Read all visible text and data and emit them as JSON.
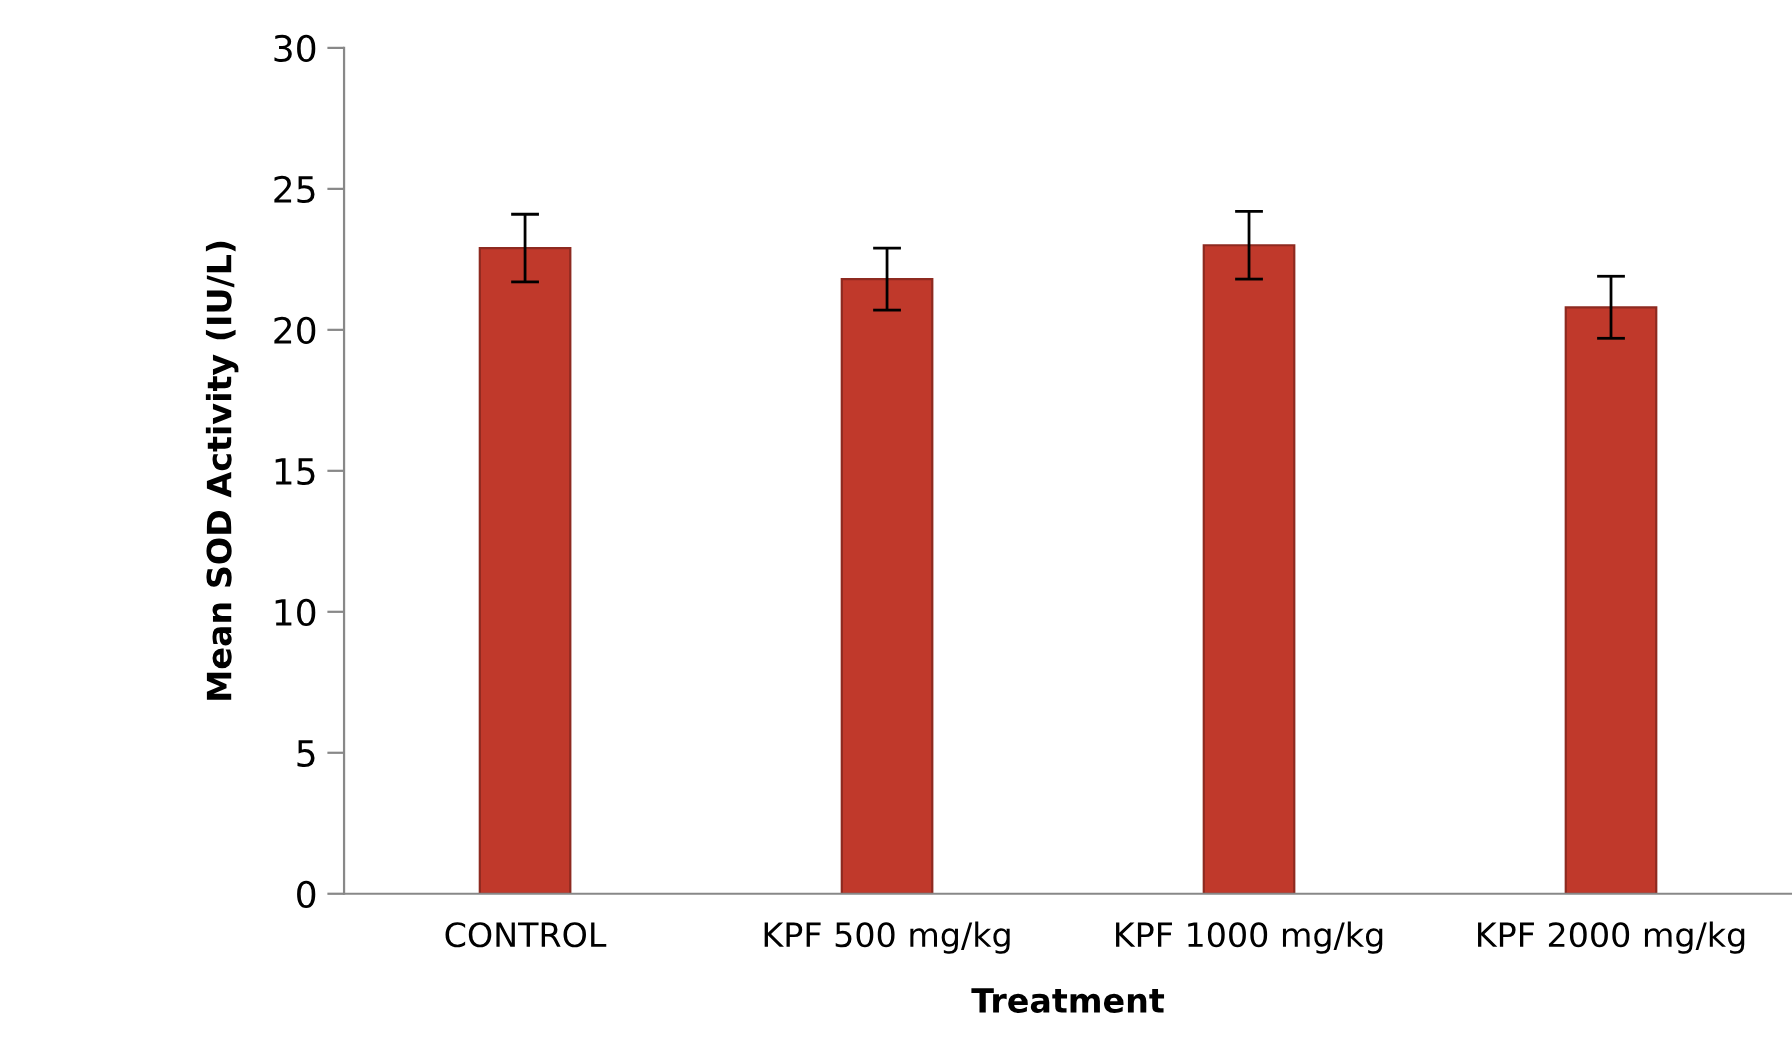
{
  "chart_data": {
    "type": "bar",
    "xlabel": "Treatment",
    "ylabel": "Mean SOD Activity (IU/L)",
    "categories": [
      "CONTROL",
      "KPF 500 mg/kg",
      "KPF 1000 mg/kg",
      "KPF 2000 mg/kg"
    ],
    "values": [
      22.9,
      21.8,
      23.0,
      20.8
    ],
    "errors": [
      1.2,
      1.1,
      1.2,
      1.1
    ],
    "color": "#c0392b",
    "ylim": [
      0,
      30
    ],
    "yticks": [
      0,
      5,
      10,
      15,
      20,
      25,
      30
    ],
    "grid": false,
    "legend": false
  }
}
